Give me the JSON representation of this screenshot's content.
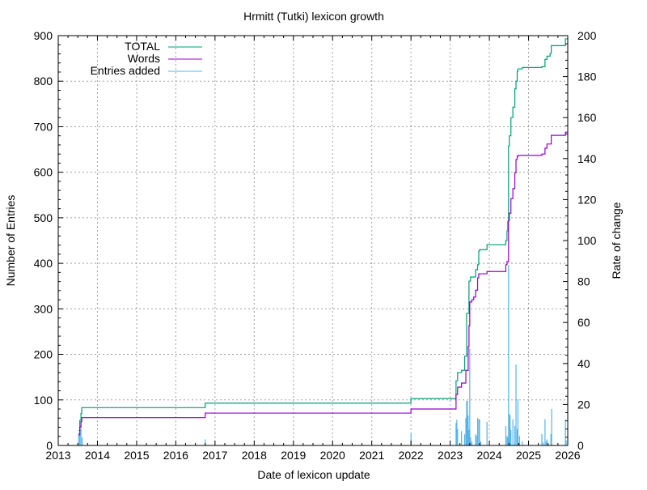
{
  "chart_data": {
    "type": "line",
    "title": "Hrmitt (Tutki) lexicon growth",
    "xlabel": "Date of lexicon update",
    "ylabel": "Number of Entries",
    "y2label": "Rate of change",
    "xlim": [
      2013,
      2026
    ],
    "ylim": [
      0,
      900
    ],
    "y2lim": [
      0,
      200
    ],
    "x_ticks": [
      "2013",
      "2014",
      "2015",
      "2016",
      "2017",
      "2018",
      "2019",
      "2020",
      "2021",
      "2022",
      "2023",
      "2024",
      "2025",
      "2026"
    ],
    "y_ticks": [
      "0",
      "100",
      "200",
      "300",
      "400",
      "500",
      "600",
      "700",
      "800",
      "900"
    ],
    "y2_ticks": [
      "0",
      "20",
      "40",
      "60",
      "80",
      "100",
      "120",
      "140",
      "160",
      "180",
      "200"
    ],
    "grid": true,
    "legend_position": "top-left",
    "colors": {
      "total": "#009e73",
      "words": "#9400d3",
      "added": "#56b4e9"
    },
    "series": [
      {
        "name": "TOTAL",
        "style": "steps",
        "axis": "y1",
        "points": [
          [
            2013.52,
            33
          ],
          [
            2013.55,
            55
          ],
          [
            2013.58,
            70
          ],
          [
            2013.6,
            83
          ],
          [
            2016.75,
            93
          ],
          [
            2022.0,
            103
          ],
          [
            2023.15,
            142
          ],
          [
            2023.19,
            160
          ],
          [
            2023.29,
            165
          ],
          [
            2023.37,
            196
          ],
          [
            2023.42,
            290
          ],
          [
            2023.48,
            361
          ],
          [
            2023.52,
            370
          ],
          [
            2023.65,
            386
          ],
          [
            2023.7,
            397
          ],
          [
            2023.73,
            427
          ],
          [
            2023.75,
            430
          ],
          [
            2023.94,
            441
          ],
          [
            2024.42,
            450
          ],
          [
            2024.45,
            471
          ],
          [
            2024.47,
            492
          ],
          [
            2024.49,
            658
          ],
          [
            2024.51,
            680
          ],
          [
            2024.55,
            720
          ],
          [
            2024.6,
            743
          ],
          [
            2024.65,
            783
          ],
          [
            2024.68,
            800
          ],
          [
            2024.71,
            822
          ],
          [
            2024.73,
            827
          ],
          [
            2024.84,
            830
          ],
          [
            2025.34,
            832
          ],
          [
            2025.42,
            848
          ],
          [
            2025.47,
            855
          ],
          [
            2025.55,
            861
          ],
          [
            2025.58,
            878
          ],
          [
            2025.94,
            893
          ],
          [
            2026.0,
            893
          ]
        ]
      },
      {
        "name": "Words",
        "style": "steps",
        "axis": "y1",
        "points": [
          [
            2013.52,
            23
          ],
          [
            2013.55,
            40
          ],
          [
            2013.58,
            52
          ],
          [
            2013.6,
            61
          ],
          [
            2016.75,
            71
          ],
          [
            2022.0,
            80
          ],
          [
            2023.15,
            112
          ],
          [
            2023.19,
            128
          ],
          [
            2023.29,
            137
          ],
          [
            2023.4,
            165
          ],
          [
            2023.46,
            217
          ],
          [
            2023.48,
            263
          ],
          [
            2023.5,
            315
          ],
          [
            2023.55,
            320
          ],
          [
            2023.6,
            326
          ],
          [
            2023.65,
            341
          ],
          [
            2023.7,
            368
          ],
          [
            2023.73,
            377
          ],
          [
            2023.94,
            382
          ],
          [
            2024.42,
            397
          ],
          [
            2024.45,
            404
          ],
          [
            2024.49,
            494
          ],
          [
            2024.51,
            510
          ],
          [
            2024.55,
            542
          ],
          [
            2024.6,
            564
          ],
          [
            2024.65,
            599
          ],
          [
            2024.68,
            628
          ],
          [
            2024.71,
            635
          ],
          [
            2024.73,
            637
          ],
          [
            2025.34,
            640
          ],
          [
            2025.42,
            653
          ],
          [
            2025.47,
            662
          ],
          [
            2025.58,
            681
          ],
          [
            2025.94,
            688
          ],
          [
            2026.0,
            688
          ]
        ]
      },
      {
        "name": "Entries added",
        "style": "impulses",
        "axis": "y2",
        "points": [
          [
            2013.52,
            6
          ],
          [
            2013.55,
            10
          ],
          [
            2013.58,
            8
          ],
          [
            2013.61,
            4
          ],
          [
            2016.75,
            3
          ],
          [
            2022.0,
            6
          ],
          [
            2023.15,
            11
          ],
          [
            2023.17,
            12.6
          ],
          [
            2023.19,
            8
          ],
          [
            2023.29,
            7
          ],
          [
            2023.37,
            5.5
          ],
          [
            2023.4,
            13.4
          ],
          [
            2023.42,
            21.7
          ],
          [
            2023.44,
            21.7
          ],
          [
            2023.46,
            14.7
          ],
          [
            2023.48,
            7.6
          ],
          [
            2023.5,
            47.4
          ],
          [
            2023.52,
            4
          ],
          [
            2023.55,
            2
          ],
          [
            2023.65,
            5.5
          ],
          [
            2023.67,
            4.8
          ],
          [
            2023.7,
            13.4
          ],
          [
            2023.73,
            12.8
          ],
          [
            2023.75,
            12.8
          ],
          [
            2023.78,
            2
          ],
          [
            2023.94,
            11.5
          ],
          [
            2024.42,
            9.5
          ],
          [
            2024.45,
            4.6
          ],
          [
            2024.47,
            4
          ],
          [
            2024.49,
            88
          ],
          [
            2024.51,
            15.4
          ],
          [
            2024.53,
            14.7
          ],
          [
            2024.55,
            7.6
          ],
          [
            2024.6,
            12.8
          ],
          [
            2024.65,
            9.5
          ],
          [
            2024.68,
            39.5
          ],
          [
            2024.71,
            8
          ],
          [
            2024.73,
            22.5
          ],
          [
            2024.77,
            4.6
          ],
          [
            2024.84,
            2
          ],
          [
            2025.34,
            5.5
          ],
          [
            2025.37,
            1.5
          ],
          [
            2025.42,
            12.8
          ],
          [
            2025.45,
            2
          ],
          [
            2025.47,
            3
          ],
          [
            2025.57,
            5.5
          ],
          [
            2025.59,
            17.8
          ],
          [
            2025.94,
            12.8
          ],
          [
            2025.96,
            2.5
          ]
        ]
      }
    ]
  }
}
